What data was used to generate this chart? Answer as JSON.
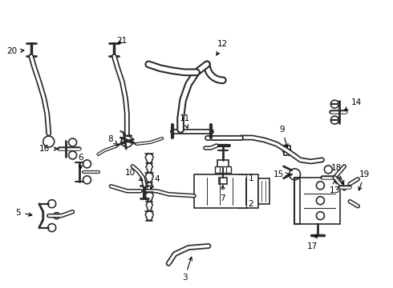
{
  "bg_color": "#ffffff",
  "line_color": "#2a2a2a",
  "figsize": [
    4.9,
    3.6
  ],
  "dpi": 100,
  "lw_hose": 4.5,
  "lw_hose_inner": 2.2,
  "lw_thin": 1.0,
  "font_size": 7.5
}
